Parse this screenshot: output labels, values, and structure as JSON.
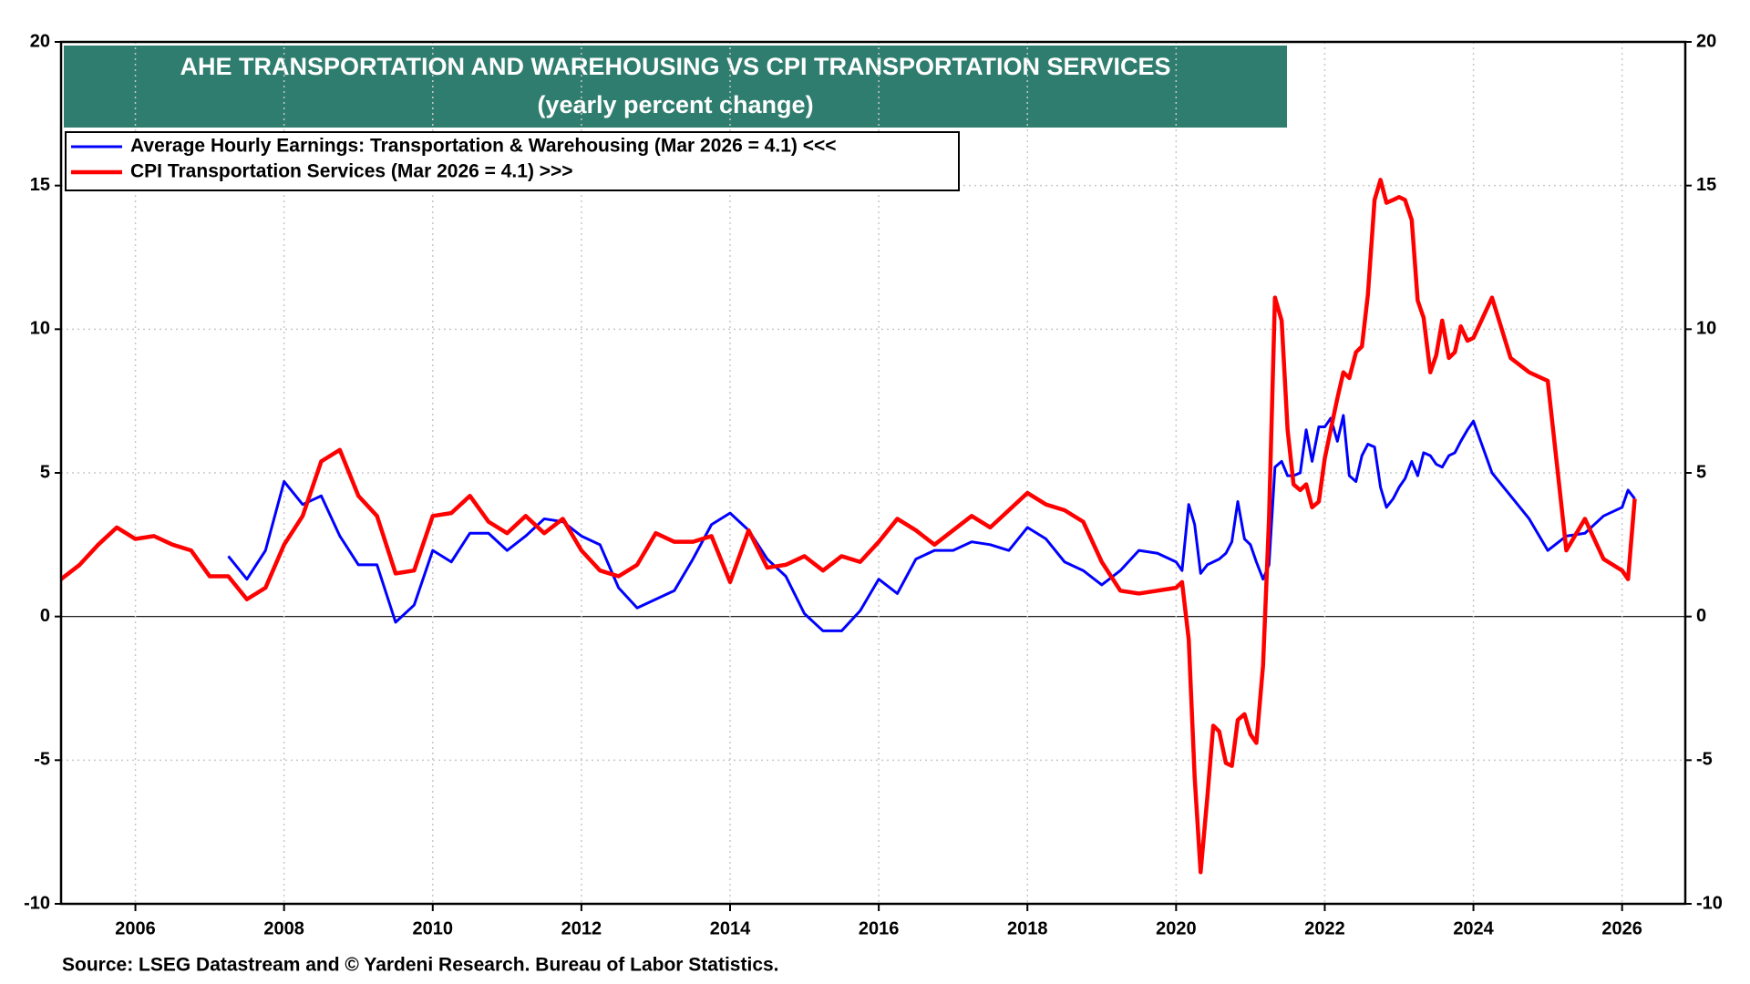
{
  "chart_data": {
    "type": "line",
    "title": "AHE TRANSPORTATION AND WAREHOUSING VS CPI TRANSPORTATION SERVICES",
    "subtitle": "(yearly percent change)",
    "source": "Source: LSEG Datastream and © Yardeni Research. Bureau of Labor Statistics.",
    "grid": true,
    "legend": "upper left",
    "x": [
      2005.0,
      2005.25,
      2005.5,
      2005.75,
      2006.0,
      2006.25,
      2006.5,
      2006.75,
      2007.0,
      2007.25,
      2007.5,
      2007.75,
      2008.0,
      2008.25,
      2008.5,
      2008.75,
      2009.0,
      2009.25,
      2009.5,
      2009.75,
      2010.0,
      2010.25,
      2010.5,
      2010.75,
      2011.0,
      2011.25,
      2011.5,
      2011.75,
      2012.0,
      2012.25,
      2012.5,
      2012.75,
      2013.0,
      2013.25,
      2013.5,
      2013.75,
      2014.0,
      2014.25,
      2014.5,
      2014.75,
      2015.0,
      2015.25,
      2015.5,
      2015.75,
      2016.0,
      2016.25,
      2016.5,
      2016.75,
      2017.0,
      2017.25,
      2017.5,
      2017.75,
      2018.0,
      2018.25,
      2018.5,
      2018.75,
      2019.0,
      2019.25,
      2019.5,
      2019.75,
      2020.0,
      2020.08,
      2020.17,
      2020.25,
      2020.33,
      2020.42,
      2020.5,
      2020.58,
      2020.67,
      2020.75,
      2020.83,
      2020.92,
      2021.0,
      2021.08,
      2021.17,
      2021.25,
      2021.33,
      2021.42,
      2021.5,
      2021.58,
      2021.67,
      2021.75,
      2021.83,
      2021.92,
      2022.0,
      2022.08,
      2022.17,
      2022.25,
      2022.33,
      2022.42,
      2022.5,
      2022.58,
      2022.67,
      2022.75,
      2022.83,
      2022.92,
      2023.0,
      2023.08,
      2023.17,
      2023.25,
      2023.33,
      2023.42,
      2023.5,
      2023.58,
      2023.67,
      2023.75,
      2023.83,
      2023.92,
      2024.0,
      2024.25,
      2024.5,
      2024.75,
      2025.0,
      2025.25,
      2025.5,
      2025.75,
      2026.0,
      2026.08,
      2026.17
    ],
    "xlim": [
      2005.0,
      2026.85
    ],
    "xticks": [
      2006,
      2008,
      2010,
      2012,
      2014,
      2016,
      2018,
      2020,
      2022,
      2024,
      2026
    ],
    "ylim": [
      -10,
      20
    ],
    "yticks": [
      -10,
      -5,
      0,
      5,
      10,
      15,
      20
    ],
    "y2lim": [
      -10,
      20
    ],
    "y2ticks": [
      -10,
      -5,
      0,
      5,
      10,
      15,
      20
    ],
    "series": [
      {
        "name": "Average Hourly Earnings: Transportation & Warehousing (Mar 2026 = 4.1) <<<",
        "color": "#0000ff",
        "values": [
          null,
          null,
          null,
          null,
          null,
          null,
          null,
          null,
          null,
          2.1,
          1.3,
          2.3,
          4.7,
          3.9,
          4.2,
          2.8,
          1.8,
          1.8,
          -0.2,
          0.4,
          2.3,
          1.9,
          2.9,
          2.9,
          2.3,
          2.8,
          3.4,
          3.3,
          2.8,
          2.5,
          1.0,
          0.3,
          0.6,
          0.9,
          2.0,
          3.2,
          3.6,
          3.0,
          2.0,
          1.4,
          0.1,
          -0.5,
          -0.5,
          0.2,
          1.3,
          0.8,
          2.0,
          2.3,
          2.3,
          2.6,
          2.5,
          2.3,
          3.1,
          2.7,
          1.9,
          1.6,
          1.1,
          1.6,
          2.3,
          2.2,
          1.9,
          1.6,
          3.9,
          3.2,
          1.5,
          1.8,
          1.9,
          2.0,
          2.2,
          2.6,
          4.0,
          2.7,
          2.5,
          1.9,
          1.3,
          1.8,
          5.2,
          5.4,
          4.9,
          4.9,
          5.0,
          6.5,
          5.4,
          6.6,
          6.6,
          6.9,
          6.1,
          7.0,
          4.9,
          4.7,
          5.6,
          6.0,
          5.9,
          4.5,
          3.8,
          4.1,
          4.5,
          4.8,
          5.4,
          4.9,
          5.7,
          5.6,
          5.3,
          5.2,
          5.6,
          5.7,
          6.1,
          6.5,
          6.8,
          5.0,
          4.2,
          3.4,
          2.3,
          2.8,
          2.9,
          3.5,
          3.8,
          4.4,
          4.1
        ]
      },
      {
        "name": "CPI Transportation Services (Mar 2026 = 4.1) >>>",
        "color": "#ff0000",
        "axis": "y2",
        "values": [
          1.3,
          1.8,
          2.5,
          3.1,
          2.7,
          2.8,
          2.5,
          2.3,
          1.4,
          1.4,
          0.6,
          1.0,
          2.5,
          3.5,
          5.4,
          5.8,
          4.2,
          3.5,
          1.5,
          1.6,
          3.5,
          3.6,
          4.2,
          3.3,
          2.9,
          3.5,
          2.9,
          3.4,
          2.3,
          1.6,
          1.4,
          1.8,
          2.9,
          2.6,
          2.6,
          2.8,
          1.2,
          3.0,
          1.7,
          1.8,
          2.1,
          1.6,
          2.1,
          1.9,
          2.6,
          3.4,
          3.0,
          2.5,
          3.0,
          3.5,
          3.1,
          3.7,
          4.3,
          3.9,
          3.7,
          3.3,
          1.9,
          0.9,
          0.8,
          0.9,
          1.0,
          1.2,
          -0.8,
          -5.6,
          -8.9,
          -6.3,
          -3.8,
          -4.0,
          -5.1,
          -5.2,
          -3.6,
          -3.4,
          -4.1,
          -4.4,
          -1.7,
          3.4,
          11.1,
          10.3,
          6.5,
          4.6,
          4.4,
          4.6,
          3.8,
          4.0,
          5.5,
          6.5,
          7.6,
          8.5,
          8.3,
          9.2,
          9.4,
          11.2,
          14.5,
          15.2,
          14.4,
          14.5,
          14.6,
          14.5,
          13.8,
          11.0,
          10.4,
          8.5,
          9.1,
          10.3,
          9.0,
          9.2,
          10.1,
          9.6,
          9.7,
          11.1,
          9.0,
          8.5,
          8.2,
          2.3,
          3.4,
          2.0,
          1.6,
          1.3,
          4.1
        ]
      }
    ]
  }
}
